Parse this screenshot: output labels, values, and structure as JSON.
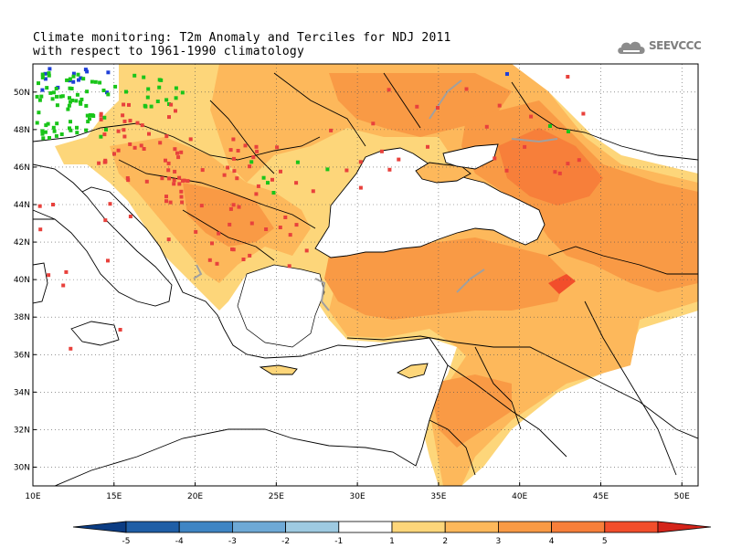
{
  "title": {
    "line1": "Climate monitoring: T2m Anomaly and Terciles for NDJ 2011",
    "line2": "with respect to 1961-1990 climatology"
  },
  "logo": {
    "text": "SEEVCCC",
    "icon": "cloud-icon"
  },
  "map": {
    "lon_range": [
      10,
      51
    ],
    "lat_range": [
      29,
      51.5
    ],
    "x_ticks": [
      {
        "value": 10,
        "label": "10E"
      },
      {
        "value": 15,
        "label": "15E"
      },
      {
        "value": 20,
        "label": "20E"
      },
      {
        "value": 25,
        "label": "25E"
      },
      {
        "value": 30,
        "label": "30E"
      },
      {
        "value": 35,
        "label": "35E"
      },
      {
        "value": 40,
        "label": "40E"
      },
      {
        "value": 45,
        "label": "45E"
      },
      {
        "value": 50,
        "label": "50E"
      }
    ],
    "y_ticks": [
      {
        "value": 30,
        "label": "30N"
      },
      {
        "value": 32,
        "label": "32N"
      },
      {
        "value": 34,
        "label": "34N"
      },
      {
        "value": 36,
        "label": "36N"
      },
      {
        "value": 38,
        "label": "38N"
      },
      {
        "value": 40,
        "label": "40N"
      },
      {
        "value": 42,
        "label": "42N"
      },
      {
        "value": 44,
        "label": "44N"
      },
      {
        "value": 46,
        "label": "46N"
      },
      {
        "value": 48,
        "label": "48N"
      },
      {
        "value": 50,
        "label": "50N"
      }
    ],
    "grid": true
  },
  "colorbar": {
    "bins": [
      {
        "color": "#0b3c83"
      },
      {
        "color": "#1f5ea6"
      },
      {
        "color": "#3f85c4"
      },
      {
        "color": "#6ea9d6"
      },
      {
        "color": "#9ecae1"
      },
      {
        "color": "#ffffff"
      },
      {
        "color": "#fdd67a"
      },
      {
        "color": "#fdb85b"
      },
      {
        "color": "#f99a45"
      },
      {
        "color": "#f77f3a"
      },
      {
        "color": "#f24e2b"
      },
      {
        "color": "#d4241a"
      }
    ],
    "labels": [
      "-5",
      "-4",
      "-3",
      "-2",
      "-1",
      "1",
      "2",
      "3",
      "4",
      "5"
    ]
  },
  "legend_colors": {
    "upper_tercile": "#e8413c",
    "middle_tercile": "#19c519",
    "lower_tercile": "#1f3fd8",
    "land_outline": "#000000",
    "river": "#a0a0a0"
  }
}
